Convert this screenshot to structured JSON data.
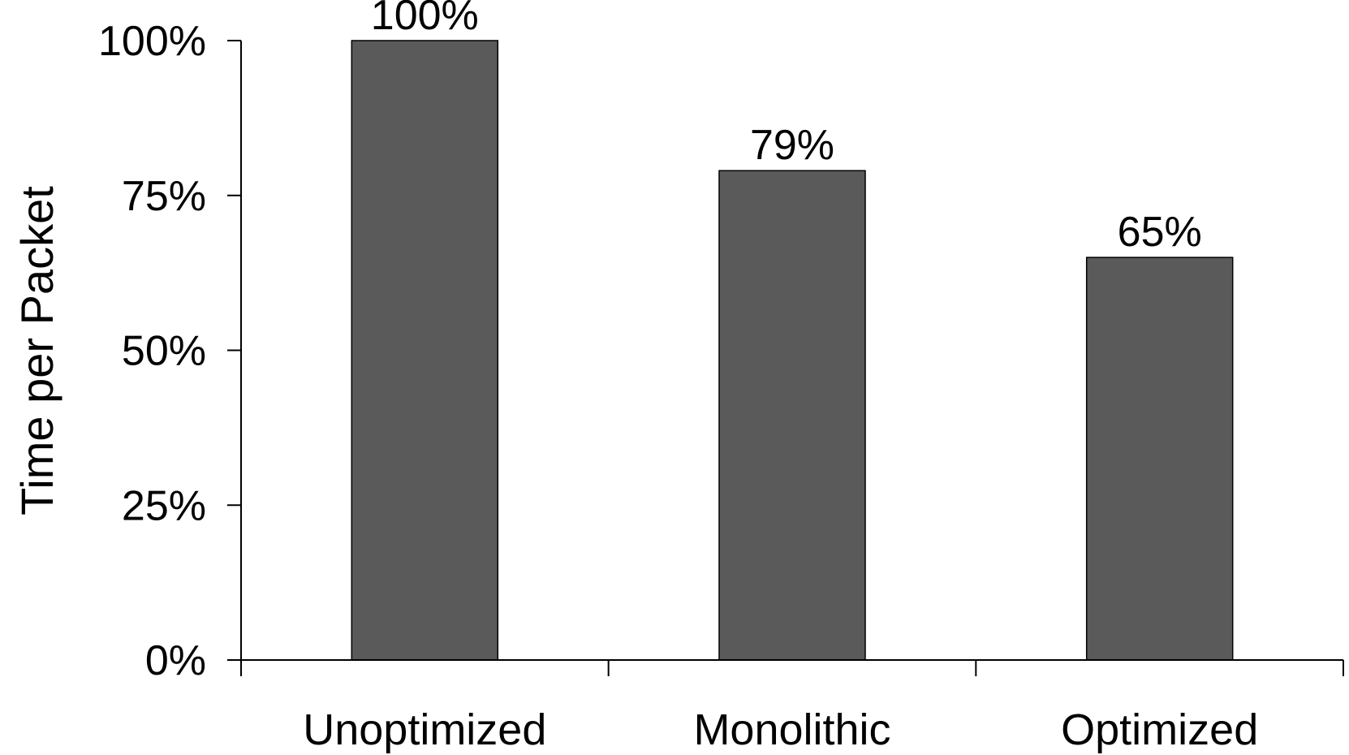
{
  "chart_data": {
    "type": "bar",
    "title": "",
    "xlabel": "",
    "ylabel": "Time per Packet",
    "categories": [
      "Unoptimized",
      "Monolithic",
      "Optimized"
    ],
    "values": [
      100,
      79,
      65
    ],
    "data_labels": [
      "100%",
      "79%",
      "65%"
    ],
    "ylim": [
      0,
      100
    ],
    "y_ticks": [
      0,
      25,
      50,
      75,
      100
    ],
    "y_tick_labels": [
      "0%",
      "25%",
      "50%",
      "75%",
      "100%"
    ],
    "grid": false,
    "legend": "none",
    "bar_color": "#5a5a5a",
    "bar_edge_color": "#000000",
    "axis_color": "#000000"
  }
}
